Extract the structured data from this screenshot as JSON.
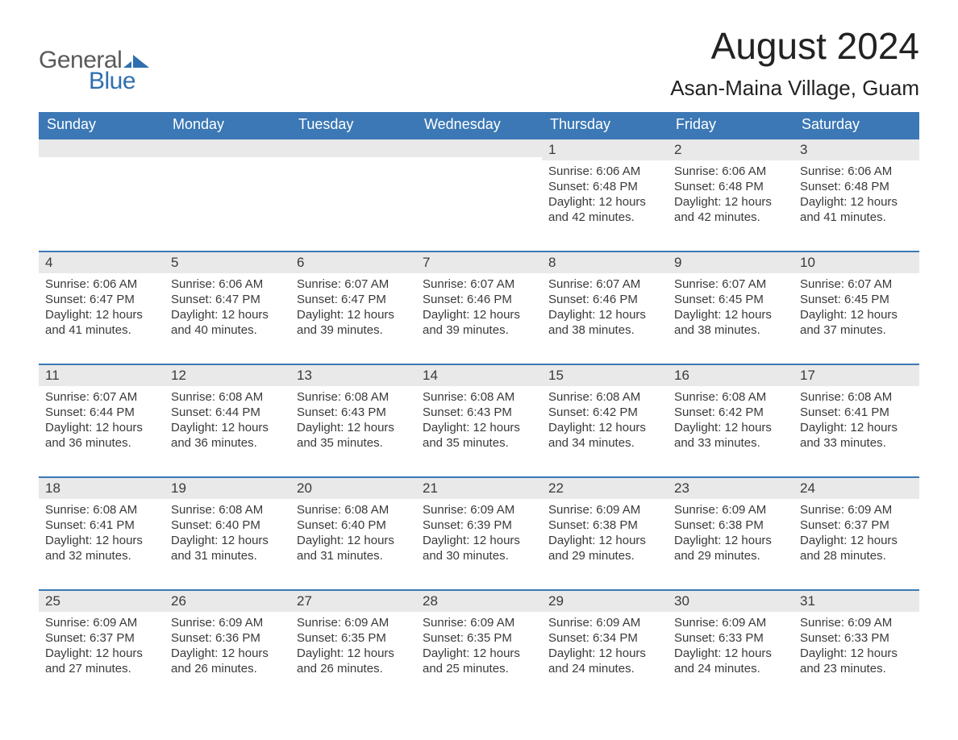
{
  "logo": {
    "word1": "General",
    "word2": "Blue"
  },
  "title": "August 2024",
  "location": "Asan-Maina Village, Guam",
  "colors": {
    "header_bg": "#3b78b5",
    "header_text": "#ffffff",
    "day_bar_bg": "#e9e9e9",
    "row_border": "#3b78b5",
    "body_text": "#3a3a3a",
    "page_bg": "#ffffff",
    "logo_gray": "#5a5a5a",
    "logo_blue": "#2f6fb0"
  },
  "typography": {
    "title_fontsize": 46,
    "location_fontsize": 26,
    "weekday_fontsize": 18,
    "daynum_fontsize": 17,
    "body_fontsize": 15
  },
  "weekdays": [
    "Sunday",
    "Monday",
    "Tuesday",
    "Wednesday",
    "Thursday",
    "Friday",
    "Saturday"
  ],
  "weeks": [
    [
      {
        "day": "",
        "sunrise": "",
        "sunset": "",
        "daylight": ""
      },
      {
        "day": "",
        "sunrise": "",
        "sunset": "",
        "daylight": ""
      },
      {
        "day": "",
        "sunrise": "",
        "sunset": "",
        "daylight": ""
      },
      {
        "day": "",
        "sunrise": "",
        "sunset": "",
        "daylight": ""
      },
      {
        "day": "1",
        "sunrise": "Sunrise: 6:06 AM",
        "sunset": "Sunset: 6:48 PM",
        "daylight": "Daylight: 12 hours and 42 minutes."
      },
      {
        "day": "2",
        "sunrise": "Sunrise: 6:06 AM",
        "sunset": "Sunset: 6:48 PM",
        "daylight": "Daylight: 12 hours and 42 minutes."
      },
      {
        "day": "3",
        "sunrise": "Sunrise: 6:06 AM",
        "sunset": "Sunset: 6:48 PM",
        "daylight": "Daylight: 12 hours and 41 minutes."
      }
    ],
    [
      {
        "day": "4",
        "sunrise": "Sunrise: 6:06 AM",
        "sunset": "Sunset: 6:47 PM",
        "daylight": "Daylight: 12 hours and 41 minutes."
      },
      {
        "day": "5",
        "sunrise": "Sunrise: 6:06 AM",
        "sunset": "Sunset: 6:47 PM",
        "daylight": "Daylight: 12 hours and 40 minutes."
      },
      {
        "day": "6",
        "sunrise": "Sunrise: 6:07 AM",
        "sunset": "Sunset: 6:47 PM",
        "daylight": "Daylight: 12 hours and 39 minutes."
      },
      {
        "day": "7",
        "sunrise": "Sunrise: 6:07 AM",
        "sunset": "Sunset: 6:46 PM",
        "daylight": "Daylight: 12 hours and 39 minutes."
      },
      {
        "day": "8",
        "sunrise": "Sunrise: 6:07 AM",
        "sunset": "Sunset: 6:46 PM",
        "daylight": "Daylight: 12 hours and 38 minutes."
      },
      {
        "day": "9",
        "sunrise": "Sunrise: 6:07 AM",
        "sunset": "Sunset: 6:45 PM",
        "daylight": "Daylight: 12 hours and 38 minutes."
      },
      {
        "day": "10",
        "sunrise": "Sunrise: 6:07 AM",
        "sunset": "Sunset: 6:45 PM",
        "daylight": "Daylight: 12 hours and 37 minutes."
      }
    ],
    [
      {
        "day": "11",
        "sunrise": "Sunrise: 6:07 AM",
        "sunset": "Sunset: 6:44 PM",
        "daylight": "Daylight: 12 hours and 36 minutes."
      },
      {
        "day": "12",
        "sunrise": "Sunrise: 6:08 AM",
        "sunset": "Sunset: 6:44 PM",
        "daylight": "Daylight: 12 hours and 36 minutes."
      },
      {
        "day": "13",
        "sunrise": "Sunrise: 6:08 AM",
        "sunset": "Sunset: 6:43 PM",
        "daylight": "Daylight: 12 hours and 35 minutes."
      },
      {
        "day": "14",
        "sunrise": "Sunrise: 6:08 AM",
        "sunset": "Sunset: 6:43 PM",
        "daylight": "Daylight: 12 hours and 35 minutes."
      },
      {
        "day": "15",
        "sunrise": "Sunrise: 6:08 AM",
        "sunset": "Sunset: 6:42 PM",
        "daylight": "Daylight: 12 hours and 34 minutes."
      },
      {
        "day": "16",
        "sunrise": "Sunrise: 6:08 AM",
        "sunset": "Sunset: 6:42 PM",
        "daylight": "Daylight: 12 hours and 33 minutes."
      },
      {
        "day": "17",
        "sunrise": "Sunrise: 6:08 AM",
        "sunset": "Sunset: 6:41 PM",
        "daylight": "Daylight: 12 hours and 33 minutes."
      }
    ],
    [
      {
        "day": "18",
        "sunrise": "Sunrise: 6:08 AM",
        "sunset": "Sunset: 6:41 PM",
        "daylight": "Daylight: 12 hours and 32 minutes."
      },
      {
        "day": "19",
        "sunrise": "Sunrise: 6:08 AM",
        "sunset": "Sunset: 6:40 PM",
        "daylight": "Daylight: 12 hours and 31 minutes."
      },
      {
        "day": "20",
        "sunrise": "Sunrise: 6:08 AM",
        "sunset": "Sunset: 6:40 PM",
        "daylight": "Daylight: 12 hours and 31 minutes."
      },
      {
        "day": "21",
        "sunrise": "Sunrise: 6:09 AM",
        "sunset": "Sunset: 6:39 PM",
        "daylight": "Daylight: 12 hours and 30 minutes."
      },
      {
        "day": "22",
        "sunrise": "Sunrise: 6:09 AM",
        "sunset": "Sunset: 6:38 PM",
        "daylight": "Daylight: 12 hours and 29 minutes."
      },
      {
        "day": "23",
        "sunrise": "Sunrise: 6:09 AM",
        "sunset": "Sunset: 6:38 PM",
        "daylight": "Daylight: 12 hours and 29 minutes."
      },
      {
        "day": "24",
        "sunrise": "Sunrise: 6:09 AM",
        "sunset": "Sunset: 6:37 PM",
        "daylight": "Daylight: 12 hours and 28 minutes."
      }
    ],
    [
      {
        "day": "25",
        "sunrise": "Sunrise: 6:09 AM",
        "sunset": "Sunset: 6:37 PM",
        "daylight": "Daylight: 12 hours and 27 minutes."
      },
      {
        "day": "26",
        "sunrise": "Sunrise: 6:09 AM",
        "sunset": "Sunset: 6:36 PM",
        "daylight": "Daylight: 12 hours and 26 minutes."
      },
      {
        "day": "27",
        "sunrise": "Sunrise: 6:09 AM",
        "sunset": "Sunset: 6:35 PM",
        "daylight": "Daylight: 12 hours and 26 minutes."
      },
      {
        "day": "28",
        "sunrise": "Sunrise: 6:09 AM",
        "sunset": "Sunset: 6:35 PM",
        "daylight": "Daylight: 12 hours and 25 minutes."
      },
      {
        "day": "29",
        "sunrise": "Sunrise: 6:09 AM",
        "sunset": "Sunset: 6:34 PM",
        "daylight": "Daylight: 12 hours and 24 minutes."
      },
      {
        "day": "30",
        "sunrise": "Sunrise: 6:09 AM",
        "sunset": "Sunset: 6:33 PM",
        "daylight": "Daylight: 12 hours and 24 minutes."
      },
      {
        "day": "31",
        "sunrise": "Sunrise: 6:09 AM",
        "sunset": "Sunset: 6:33 PM",
        "daylight": "Daylight: 12 hours and 23 minutes."
      }
    ]
  ]
}
